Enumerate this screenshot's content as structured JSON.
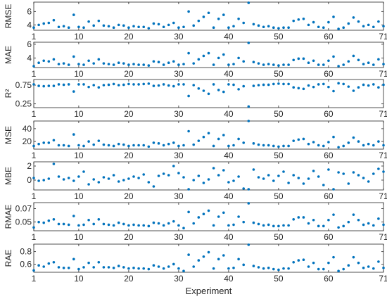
{
  "chart_data": [
    {
      "type": "scatter",
      "ylabel": "RMSE",
      "xlim": [
        1,
        71
      ],
      "ylim": [
        3.2,
        7.4
      ],
      "yticks": [
        4,
        6
      ],
      "x": [
        1,
        2,
        3,
        4,
        5,
        6,
        7,
        8,
        9,
        10,
        11,
        12,
        13,
        14,
        15,
        16,
        17,
        18,
        19,
        20,
        21,
        22,
        23,
        24,
        25,
        26,
        27,
        28,
        29,
        30,
        31,
        32,
        33,
        34,
        35,
        36,
        37,
        38,
        39,
        40,
        41,
        42,
        43,
        44,
        45,
        46,
        47,
        48,
        49,
        50,
        51,
        52,
        53,
        54,
        55,
        56,
        57,
        58,
        59,
        60,
        61,
        62,
        63,
        64,
        65,
        66,
        67,
        68,
        69,
        70,
        71
      ],
      "values": [
        3.6,
        4.0,
        4.2,
        4.3,
        4.7,
        3.7,
        3.8,
        3.6,
        5.5,
        3.7,
        3.6,
        4.5,
        3.9,
        4.6,
        3.9,
        3.8,
        3.6,
        4.0,
        3.9,
        3.6,
        3.8,
        3.7,
        3.7,
        3.5,
        4.2,
        4.1,
        3.7,
        4.0,
        4.3,
        3.6,
        3.7,
        6.0,
        3.9,
        4.6,
        5.2,
        5.8,
        3.6,
        4.9,
        5.5,
        3.6,
        3.8,
        4.9,
        4.3,
        7.3,
        4.1,
        3.9,
        3.7,
        3.8,
        3.6,
        3.5,
        3.6,
        3.6,
        4.6,
        4.8,
        4.9,
        4.0,
        4.4,
        3.7,
        3.6,
        4.4,
        5.2,
        3.4,
        3.6,
        4.2,
        5.1,
        4.5,
        3.8,
        4.0,
        3.7,
        4.5,
        3.8
      ]
    },
    {
      "type": "scatter",
      "ylabel": "MAE",
      "xlim": [
        1,
        71
      ],
      "ylim": [
        2.6,
        6.3
      ],
      "yticks": [
        4,
        6
      ],
      "x": [
        1,
        2,
        3,
        4,
        5,
        6,
        7,
        8,
        9,
        10,
        11,
        12,
        13,
        14,
        15,
        16,
        17,
        18,
        19,
        20,
        21,
        22,
        23,
        24,
        25,
        26,
        27,
        28,
        29,
        30,
        31,
        32,
        33,
        34,
        35,
        36,
        37,
        38,
        39,
        40,
        41,
        42,
        43,
        44,
        45,
        46,
        47,
        48,
        49,
        50,
        51,
        52,
        53,
        54,
        55,
        56,
        57,
        58,
        59,
        60,
        61,
        62,
        63,
        64,
        65,
        66,
        67,
        68,
        69,
        70,
        71
      ],
      "values": [
        2.8,
        3.3,
        3.6,
        3.5,
        3.8,
        3.1,
        3.2,
        3.0,
        4.2,
        3.1,
        3.0,
        3.6,
        3.2,
        3.8,
        3.2,
        3.1,
        3.0,
        3.3,
        3.2,
        3.0,
        3.1,
        3.0,
        3.0,
        2.9,
        3.5,
        3.4,
        3.0,
        3.3,
        3.5,
        3.0,
        3.1,
        4.7,
        3.2,
        3.8,
        4.3,
        4.7,
        3.0,
        4.0,
        4.5,
        3.0,
        3.1,
        4.0,
        3.5,
        6.2,
        3.4,
        3.2,
        3.0,
        3.1,
        3.0,
        2.9,
        3.0,
        3.0,
        3.7,
        3.9,
        3.9,
        3.3,
        3.6,
        3.0,
        3.0,
        3.6,
        4.2,
        2.8,
        3.0,
        3.5,
        4.3,
        3.7,
        3.1,
        3.3,
        3.0,
        3.8,
        3.1
      ]
    },
    {
      "type": "scatter",
      "ylabel": "R²",
      "xlim": [
        1,
        71
      ],
      "ylim": [
        0.15,
        0.9
      ],
      "yticks": [
        0.25,
        0.75
      ],
      "x": [
        1,
        2,
        3,
        4,
        5,
        6,
        7,
        8,
        9,
        10,
        11,
        12,
        13,
        14,
        15,
        16,
        17,
        18,
        19,
        20,
        21,
        22,
        23,
        24,
        25,
        26,
        27,
        28,
        29,
        30,
        31,
        32,
        33,
        34,
        35,
        36,
        37,
        38,
        39,
        40,
        41,
        42,
        43,
        44,
        45,
        46,
        47,
        48,
        49,
        50,
        51,
        52,
        53,
        54,
        55,
        56,
        57,
        58,
        59,
        60,
        61,
        62,
        63,
        64,
        65,
        66,
        67,
        68,
        69,
        70,
        71
      ],
      "values": [
        0.77,
        0.73,
        0.72,
        0.73,
        0.73,
        0.77,
        0.76,
        0.77,
        0.58,
        0.77,
        0.77,
        0.7,
        0.75,
        0.69,
        0.75,
        0.76,
        0.78,
        0.75,
        0.76,
        0.78,
        0.77,
        0.77,
        0.78,
        0.79,
        0.73,
        0.74,
        0.77,
        0.74,
        0.72,
        0.77,
        0.77,
        0.46,
        0.75,
        0.66,
        0.6,
        0.52,
        0.77,
        0.62,
        0.57,
        0.77,
        0.76,
        0.64,
        0.72,
        0.18,
        0.73,
        0.75,
        0.76,
        0.76,
        0.78,
        0.79,
        0.78,
        0.78,
        0.69,
        0.67,
        0.65,
        0.74,
        0.7,
        0.77,
        0.78,
        0.7,
        0.59,
        0.8,
        0.78,
        0.71,
        0.6,
        0.69,
        0.76,
        0.74,
        0.77,
        0.69,
        0.76
      ]
    },
    {
      "type": "scatter",
      "ylabel": "MSE",
      "xlim": [
        1,
        71
      ],
      "ylim": [
        8,
        52
      ],
      "yticks": [
        20,
        40
      ],
      "x": [
        1,
        2,
        3,
        4,
        5,
        6,
        7,
        8,
        9,
        10,
        11,
        12,
        13,
        14,
        15,
        16,
        17,
        18,
        19,
        20,
        21,
        22,
        23,
        24,
        25,
        26,
        27,
        28,
        29,
        30,
        31,
        32,
        33,
        34,
        35,
        36,
        37,
        38,
        39,
        40,
        41,
        42,
        43,
        44,
        45,
        46,
        47,
        48,
        49,
        50,
        51,
        52,
        53,
        54,
        55,
        56,
        57,
        58,
        59,
        60,
        61,
        62,
        63,
        64,
        65,
        66,
        67,
        68,
        69,
        70,
        71
      ],
      "values": [
        13,
        16,
        18,
        18,
        22,
        14,
        14,
        13,
        31,
        14,
        13,
        20,
        15,
        21,
        15,
        14,
        13,
        16,
        15,
        13,
        14,
        14,
        14,
        12,
        18,
        17,
        14,
        16,
        18,
        13,
        14,
        36,
        15,
        21,
        27,
        33,
        13,
        24,
        30,
        13,
        14,
        24,
        18,
        52,
        17,
        15,
        14,
        14,
        13,
        12,
        13,
        13,
        21,
        23,
        24,
        16,
        19,
        14,
        13,
        19,
        27,
        11,
        13,
        18,
        26,
        20,
        14,
        16,
        14,
        20,
        14
      ]
    },
    {
      "type": "scatter",
      "ylabel": "MBE",
      "xlim": [
        1,
        71
      ],
      "ylim": [
        -1.4,
        2.6
      ],
      "yticks": [
        0,
        2
      ],
      "x": [
        1,
        2,
        3,
        4,
        5,
        6,
        7,
        8,
        9,
        10,
        11,
        12,
        13,
        14,
        15,
        16,
        17,
        18,
        19,
        20,
        21,
        22,
        23,
        24,
        25,
        26,
        27,
        28,
        29,
        30,
        31,
        32,
        33,
        34,
        35,
        36,
        37,
        38,
        39,
        40,
        41,
        42,
        43,
        44,
        45,
        46,
        47,
        48,
        49,
        50,
        51,
        52,
        53,
        54,
        55,
        56,
        57,
        58,
        59,
        60,
        61,
        62,
        63,
        64,
        65,
        66,
        67,
        68,
        69,
        70,
        71
      ],
      "values": [
        0.3,
        -0.1,
        0.0,
        0.2,
        2.3,
        0.5,
        0.1,
        0.3,
        -0.1,
        0.5,
        1.2,
        -0.6,
        0.1,
        -0.3,
        0.4,
        0.2,
        0.7,
        -0.2,
        0.0,
        0.2,
        0.5,
        0.3,
        0.8,
        -0.3,
        -0.9,
        0.6,
        0.9,
        0.7,
        2.0,
        1.0,
        0.4,
        -1.3,
        0.0,
        0.6,
        -0.4,
        0.1,
        1.7,
        0.7,
        1.4,
        -0.3,
        -0.1,
        0.5,
        -1.2,
        -1.3,
        1.5,
        0.4,
        0.2,
        0.7,
        -0.1,
        0.6,
        1.2,
        -0.4,
        0.7,
        0.3,
        -0.5,
        0.2,
        1.3,
        0.5,
        -0.7,
        1.5,
        -1.3,
        1.1,
        0.9,
        -0.5,
        1.1,
        0.7,
        0.3,
        -0.2,
        0.9,
        1.6,
        1.2
      ]
    },
    {
      "type": "scatter",
      "ylabel": "RMAE",
      "xlim": [
        1,
        71
      ],
      "ylim": [
        0.037,
        0.079
      ],
      "yticks": [
        0.05,
        0.07
      ],
      "x": [
        1,
        2,
        3,
        4,
        5,
        6,
        7,
        8,
        9,
        10,
        11,
        12,
        13,
        14,
        15,
        16,
        17,
        18,
        19,
        20,
        21,
        22,
        23,
        24,
        25,
        26,
        27,
        28,
        29,
        30,
        31,
        32,
        33,
        34,
        35,
        36,
        37,
        38,
        39,
        40,
        41,
        42,
        43,
        44,
        45,
        46,
        47,
        48,
        49,
        50,
        51,
        52,
        53,
        54,
        55,
        56,
        57,
        58,
        59,
        60,
        61,
        62,
        63,
        64,
        65,
        66,
        67,
        68,
        69,
        70,
        71
      ],
      "values": [
        0.042,
        0.05,
        0.049,
        0.052,
        0.054,
        0.047,
        0.047,
        0.046,
        0.059,
        0.045,
        0.046,
        0.053,
        0.047,
        0.054,
        0.047,
        0.046,
        0.045,
        0.049,
        0.047,
        0.045,
        0.046,
        0.045,
        0.045,
        0.044,
        0.049,
        0.048,
        0.045,
        0.048,
        0.051,
        0.045,
        0.041,
        0.065,
        0.048,
        0.057,
        0.062,
        0.067,
        0.045,
        0.058,
        0.064,
        0.045,
        0.046,
        0.058,
        0.05,
        0.078,
        0.049,
        0.047,
        0.045,
        0.046,
        0.044,
        0.044,
        0.045,
        0.045,
        0.054,
        0.057,
        0.057,
        0.048,
        0.053,
        0.044,
        0.044,
        0.053,
        0.061,
        0.042,
        0.044,
        0.05,
        0.061,
        0.053,
        0.046,
        0.048,
        0.045,
        0.055,
        0.046
      ]
    },
    {
      "type": "scatter",
      "ylabel": "RAE",
      "xlim": [
        1,
        71
      ],
      "ylim": [
        0.47,
        0.92
      ],
      "yticks": [
        0.6,
        0.8
      ],
      "x": [
        1,
        2,
        3,
        4,
        5,
        6,
        7,
        8,
        9,
        10,
        11,
        12,
        13,
        14,
        15,
        16,
        17,
        18,
        19,
        20,
        21,
        22,
        23,
        24,
        25,
        26,
        27,
        28,
        29,
        30,
        31,
        32,
        33,
        34,
        35,
        36,
        37,
        38,
        39,
        40,
        41,
        42,
        43,
        44,
        45,
        46,
        47,
        48,
        49,
        50,
        51,
        52,
        53,
        54,
        55,
        56,
        57,
        58,
        59,
        60,
        61,
        62,
        63,
        64,
        65,
        66,
        67,
        68,
        69,
        70,
        71
      ],
      "values": [
        0.5,
        0.58,
        0.56,
        0.61,
        0.63,
        0.55,
        0.54,
        0.54,
        0.68,
        0.52,
        0.55,
        0.62,
        0.55,
        0.63,
        0.55,
        0.55,
        0.54,
        0.57,
        0.55,
        0.53,
        0.54,
        0.53,
        0.53,
        0.52,
        0.58,
        0.56,
        0.53,
        0.56,
        0.6,
        0.53,
        0.49,
        0.75,
        0.56,
        0.66,
        0.72,
        0.79,
        0.53,
        0.68,
        0.74,
        0.53,
        0.54,
        0.68,
        0.59,
        0.91,
        0.57,
        0.55,
        0.53,
        0.54,
        0.52,
        0.51,
        0.53,
        0.53,
        0.63,
        0.66,
        0.67,
        0.56,
        0.62,
        0.52,
        0.52,
        0.62,
        0.71,
        0.49,
        0.52,
        0.58,
        0.71,
        0.62,
        0.54,
        0.56,
        0.53,
        0.64,
        0.54
      ]
    }
  ],
  "shared_x": {
    "ticks": [
      1,
      10,
      20,
      30,
      40,
      50,
      60,
      71
    ],
    "xlabel": "Experiment"
  },
  "colors": {
    "marker": "#0072BD",
    "axis": "#262626"
  }
}
